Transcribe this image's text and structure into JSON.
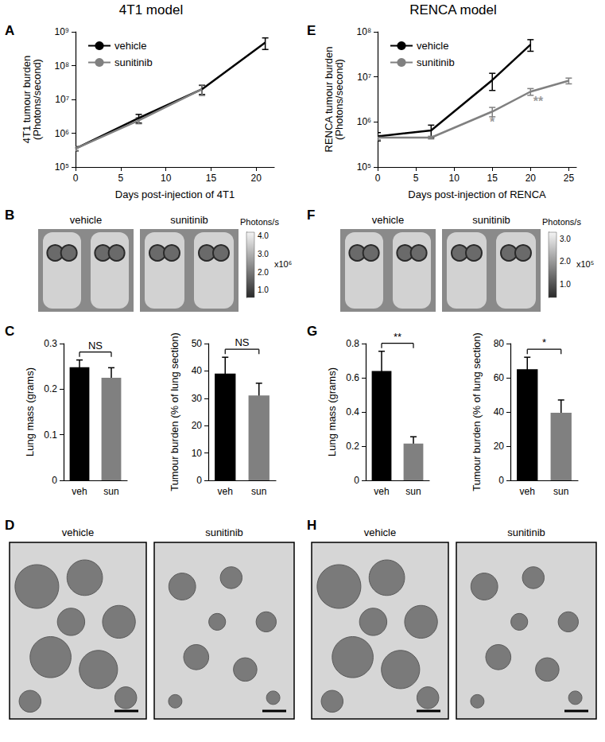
{
  "chart_data": [
    {
      "panel": "A",
      "type": "line",
      "title": "4T1 model",
      "xlabel": "Days post-injection of 4T1",
      "ylabel": "4T1 tumour burden\n(Photons/second)",
      "log": "y",
      "legend": "upper left",
      "xlim": [
        0,
        22
      ],
      "xticks": [
        0,
        5,
        10,
        15,
        20
      ],
      "ylim": [
        100000,
        1000000000
      ],
      "yticks": [
        {
          "value": 100000,
          "label": "10⁵"
        },
        {
          "value": 1000000,
          "label": "10⁶"
        },
        {
          "value": 10000000,
          "label": "10⁷"
        },
        {
          "value": 100000000,
          "label": "10⁸"
        },
        {
          "value": 1000000000,
          "label": "10⁹"
        }
      ],
      "series": [
        {
          "name": "vehicle",
          "color": "#000000",
          "x": [
            0,
            7,
            14,
            21
          ],
          "values": [
            350000,
            2800000,
            20000000,
            480000000
          ],
          "errors": [
            50000,
            800000,
            6000000,
            180000000
          ]
        },
        {
          "name": "sunitinib",
          "color": "#808080",
          "x": [
            0,
            7,
            14
          ],
          "values": [
            350000,
            2400000,
            20000000
          ],
          "errors": [
            40000,
            500000,
            7000000
          ]
        }
      ]
    },
    {
      "panel": "B",
      "type": "image",
      "titles": [
        "vehicle",
        "sunitinib"
      ],
      "colorbar_title": "Photons/s",
      "colorbar_multiplier": "x10⁶",
      "colorbar_lim": [
        0.6,
        4.2
      ],
      "colorbar_ticks": [
        {
          "value": 1,
          "label": "1.0"
        },
        {
          "value": 2,
          "label": "2.0"
        },
        {
          "value": 3,
          "label": "3.0"
        },
        {
          "value": 4,
          "label": "4.0"
        }
      ]
    },
    {
      "panel": "C",
      "type": "bar",
      "subplots": [
        {
          "ylabel": "Lung mass (grams)",
          "categories": [
            "veh",
            "sun"
          ],
          "values": [
            0.248,
            0.225
          ],
          "errors": [
            0.016,
            0.022
          ],
          "colors": [
            "#000000",
            "#808080"
          ],
          "ylim": [
            0,
            0.3
          ],
          "yticks": [
            0,
            0.1,
            0.2,
            0.3
          ],
          "significance": "NS"
        },
        {
          "ylabel": "Tumour burden (% of lung section)",
          "categories": [
            "veh",
            "sun"
          ],
          "values": [
            39,
            31
          ],
          "errors": [
            6,
            4.5
          ],
          "colors": [
            "#000000",
            "#808080"
          ],
          "ylim": [
            0,
            50
          ],
          "yticks": [
            0,
            10,
            20,
            30,
            40,
            50
          ],
          "significance": "NS"
        }
      ]
    },
    {
      "panel": "D",
      "type": "image",
      "titles": [
        "vehicle",
        "sunitinib"
      ]
    },
    {
      "panel": "E",
      "type": "line",
      "title": "RENCA model",
      "xlabel": "Days post-injection of RENCA",
      "ylabel": "RENCA tumour burden\n(Photons/second)",
      "log": "y",
      "legend": "upper left",
      "xlim": [
        0,
        26
      ],
      "xticks": [
        0,
        5,
        10,
        15,
        20,
        25
      ],
      "ylim": [
        100000,
        100000000
      ],
      "yticks": [
        {
          "value": 100000,
          "label": "10⁵"
        },
        {
          "value": 1000000,
          "label": "10⁶"
        },
        {
          "value": 10000000,
          "label": "10⁷"
        },
        {
          "value": 100000000,
          "label": "10⁸"
        }
      ],
      "series": [
        {
          "name": "vehicle",
          "color": "#000000",
          "x": [
            0,
            7,
            15,
            20
          ],
          "values": [
            480000,
            650000,
            8500000,
            52000000
          ],
          "errors": [
            100000,
            200000,
            3500000,
            15000000
          ]
        },
        {
          "name": "sunitinib",
          "color": "#808080",
          "x": [
            0,
            7,
            15,
            20,
            25
          ],
          "values": [
            450000,
            450000,
            1700000,
            4700000,
            8200000
          ],
          "errors": [
            50000,
            30000,
            400000,
            800000,
            1200000
          ]
        }
      ],
      "annotations": [
        {
          "x": 15,
          "y": 1000000,
          "text": "*"
        },
        {
          "x": 21,
          "y": 2800000,
          "text": "**"
        }
      ]
    },
    {
      "panel": "F",
      "type": "image",
      "titles": [
        "vehicle",
        "sunitinib"
      ],
      "colorbar_title": "Photons/s",
      "colorbar_multiplier": "x10⁵",
      "colorbar_lim": [
        0.4,
        3.3
      ],
      "colorbar_ticks": [
        {
          "value": 1,
          "label": "1.0"
        },
        {
          "value": 2,
          "label": "2.0"
        },
        {
          "value": 3,
          "label": "3.0"
        }
      ]
    },
    {
      "panel": "G",
      "type": "bar",
      "subplots": [
        {
          "ylabel": "Lung mass (grams)",
          "categories": [
            "veh",
            "sun"
          ],
          "values": [
            0.64,
            0.215
          ],
          "errors": [
            0.115,
            0.04
          ],
          "colors": [
            "#000000",
            "#808080"
          ],
          "ylim": [
            0,
            0.8
          ],
          "yticks": [
            0,
            0.2,
            0.4,
            0.6,
            0.8
          ],
          "significance": "**"
        },
        {
          "ylabel": "Tumour burden (% of lung section)",
          "categories": [
            "veh",
            "sun"
          ],
          "values": [
            65,
            39.5
          ],
          "errors": [
            7,
            7.5
          ],
          "colors": [
            "#000000",
            "#808080"
          ],
          "ylim": [
            0,
            80
          ],
          "yticks": [
            0,
            20,
            40,
            60,
            80
          ],
          "significance": "*"
        }
      ]
    },
    {
      "panel": "H",
      "type": "image",
      "titles": [
        "vehicle",
        "sunitinib"
      ]
    }
  ]
}
